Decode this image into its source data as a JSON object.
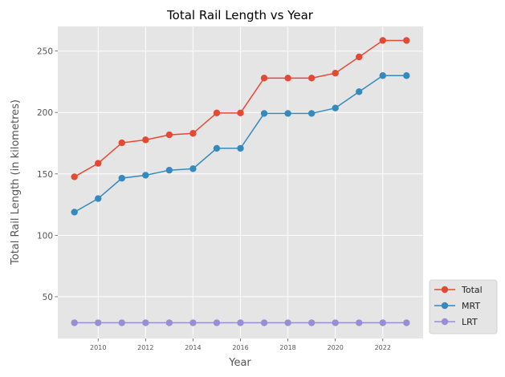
{
  "chart_data": {
    "type": "line",
    "title": "Total Rail Length vs Year",
    "xlabel": "Year",
    "ylabel": "Total Rail Length (in kilometres)",
    "x": [
      2009,
      2010,
      2011,
      2012,
      2013,
      2014,
      2015,
      2016,
      2017,
      2018,
      2019,
      2020,
      2021,
      2022,
      2023
    ],
    "xlim": [
      2008.3,
      2023.7
    ],
    "ylim": [
      16,
      270
    ],
    "xticks": [
      "2010",
      "2012",
      "2014",
      "2016",
      "2018",
      "2020",
      "2022"
    ],
    "yticks": [
      "50",
      "100",
      "150",
      "200",
      "250"
    ],
    "grid": true,
    "legend_position": "bottom-right-outside",
    "series": [
      {
        "name": "Total",
        "color": "#E24A33",
        "values": [
          147.6,
          158.6,
          175.3,
          177.7,
          181.8,
          183.0,
          199.6,
          199.6,
          228.0,
          228.0,
          228.0,
          232.0,
          245.2,
          258.6,
          258.6
        ]
      },
      {
        "name": "MRT",
        "color": "#348ABD",
        "values": [
          118.9,
          129.9,
          146.5,
          148.9,
          153.0,
          154.2,
          170.8,
          170.8,
          199.2,
          199.2,
          199.2,
          203.6,
          216.9,
          230.0,
          230.0
        ]
      },
      {
        "name": "LRT",
        "color": "#988ED5",
        "values": [
          28.8,
          28.8,
          28.8,
          28.8,
          28.8,
          28.8,
          28.8,
          28.8,
          28.8,
          28.8,
          28.8,
          28.8,
          28.8,
          28.8,
          28.8
        ]
      }
    ]
  }
}
